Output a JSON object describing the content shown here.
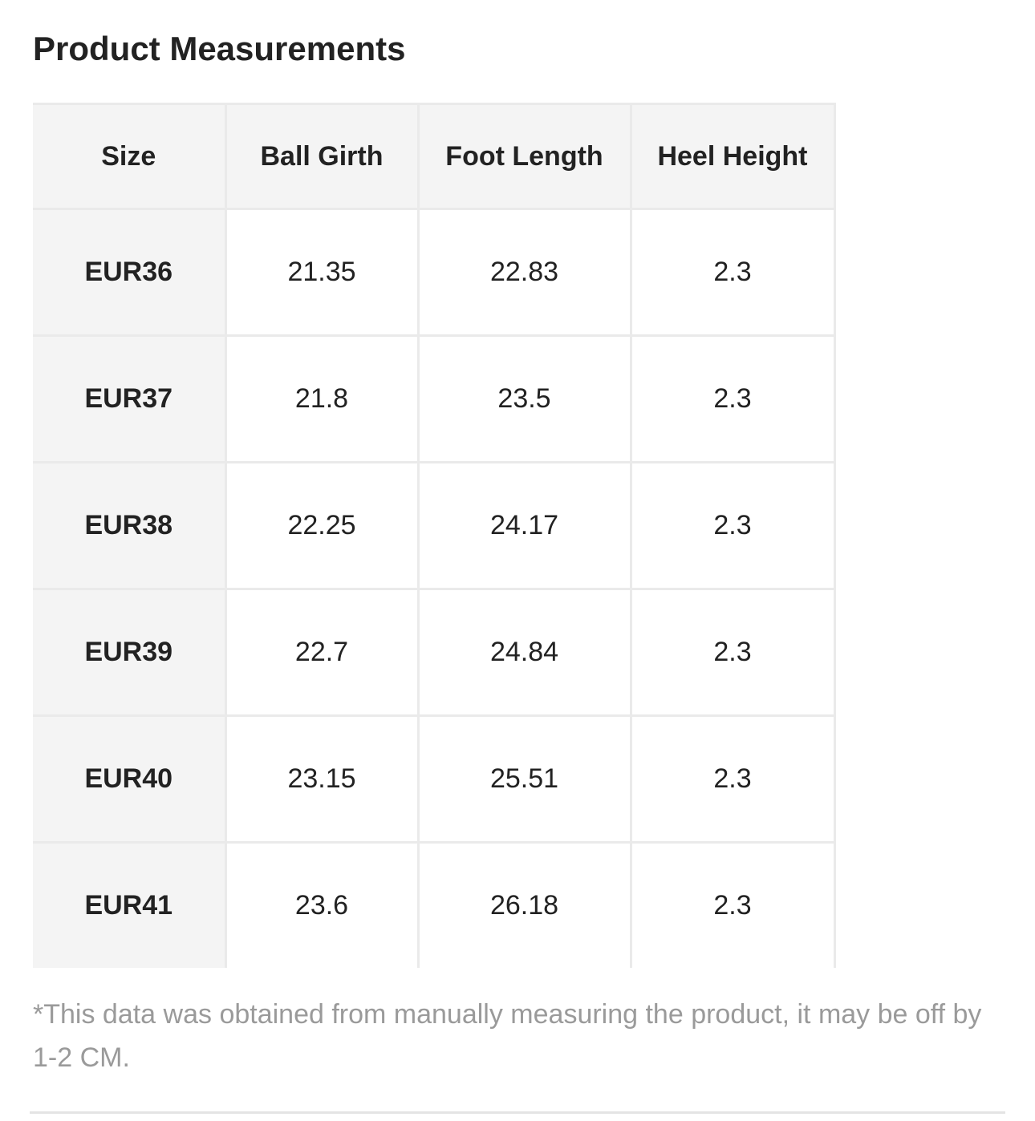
{
  "title": "Product Measurements",
  "table": {
    "headers": [
      "Size",
      "Ball Girth",
      "Foot Length",
      "Heel Height"
    ],
    "rows": [
      [
        "EUR36",
        "21.35",
        "22.83",
        "2.3"
      ],
      [
        "EUR37",
        "21.8",
        "23.5",
        "2.3"
      ],
      [
        "EUR38",
        "22.25",
        "24.17",
        "2.3"
      ],
      [
        "EUR39",
        "22.7",
        "24.84",
        "2.3"
      ],
      [
        "EUR40",
        "23.15",
        "25.51",
        "2.3"
      ],
      [
        "EUR41",
        "23.6",
        "26.18",
        "2.3"
      ]
    ]
  },
  "footnote": "*This data was obtained from manually measuring the product, it may be off by 1-2 CM.",
  "colors": {
    "header_bg": "#f4f4f4",
    "border": "#eaeaea",
    "text": "#222222",
    "footnote_text": "#9a9a9a"
  }
}
